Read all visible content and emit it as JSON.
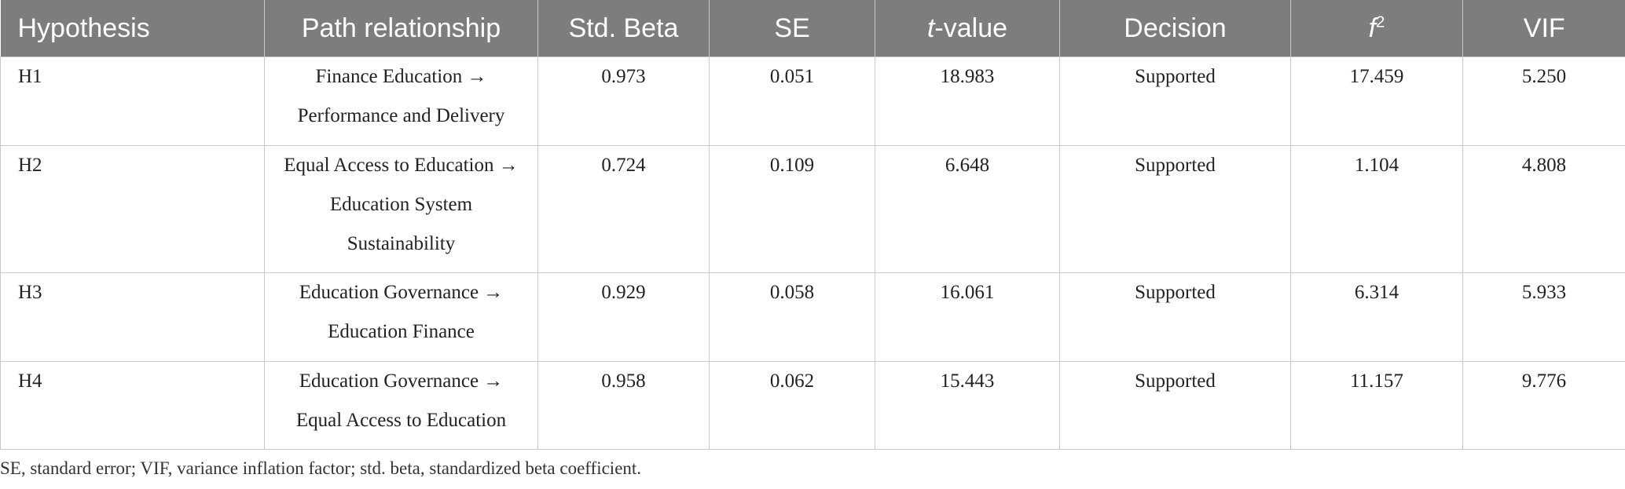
{
  "table": {
    "headers": {
      "hypothesis": "Hypothesis",
      "path": "Path relationship",
      "beta": "Std. Beta",
      "se": "SE",
      "t_var": "t",
      "t_suffix": "-value",
      "decision": "Decision",
      "f_base": "f",
      "f_sup": "2",
      "vif": "VIF"
    },
    "rows": [
      {
        "hypothesis": "H1",
        "path": "Finance Education → Performance and Delivery",
        "beta": "0.973",
        "se": "0.051",
        "t": "18.983",
        "decision": "Supported",
        "f2": "17.459",
        "vif": "5.250"
      },
      {
        "hypothesis": "H2",
        "path": "Equal Access to Education → Education System Sustainability",
        "beta": "0.724",
        "se": "0.109",
        "t": "6.648",
        "decision": "Supported",
        "f2": "1.104",
        "vif": "4.808"
      },
      {
        "hypothesis": "H3",
        "path": "Education Governance → Education Finance",
        "beta": "0.929",
        "se": "0.058",
        "t": "16.061",
        "decision": "Supported",
        "f2": "6.314",
        "vif": "5.933"
      },
      {
        "hypothesis": "H4",
        "path": "Education Governance → Equal Access to Education",
        "beta": "0.958",
        "se": "0.062",
        "t": "15.443",
        "decision": "Supported",
        "f2": "11.157",
        "vif": "9.776"
      }
    ]
  },
  "footnote": "SE, standard error; VIF, variance inflation factor; std. beta, standardized beta coefficient."
}
